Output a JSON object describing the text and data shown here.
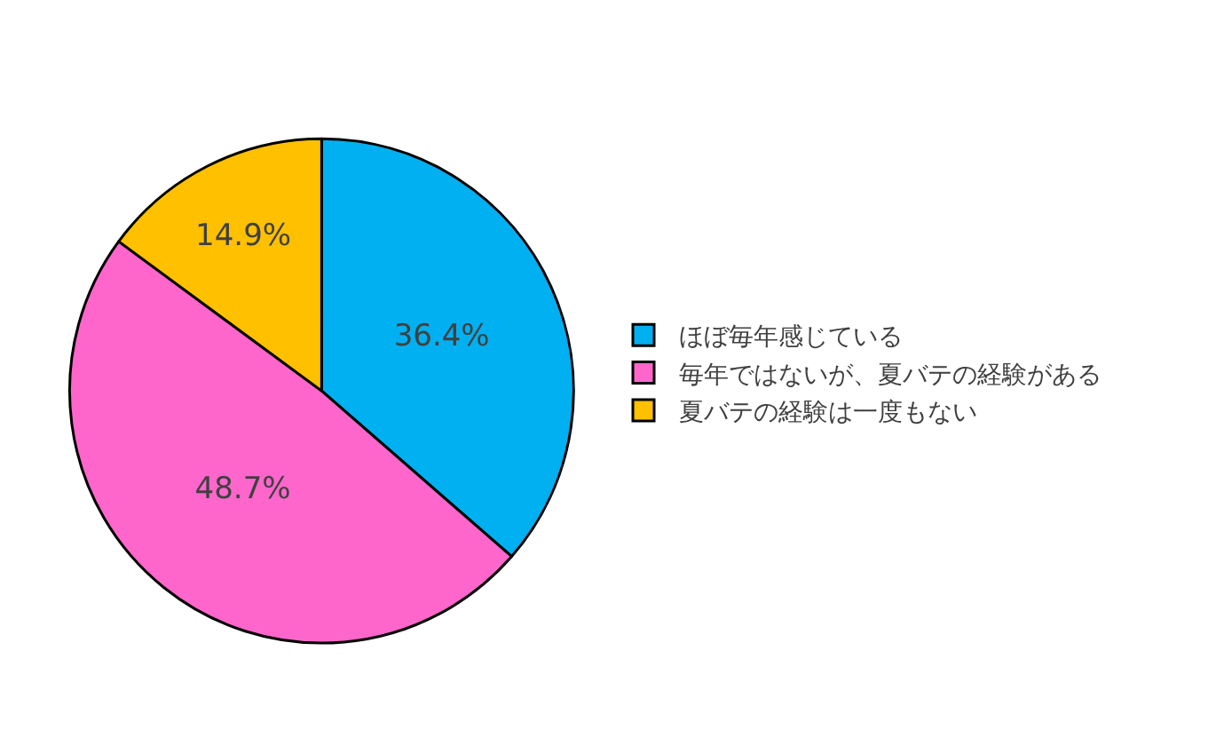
{
  "chart_data": {
    "type": "pie",
    "categories": [
      "ほぼ毎年感じている",
      "毎年ではないが、夏バテの経験がある",
      "夏バテの経験は一度もない"
    ],
    "values": [
      36.4,
      48.7,
      14.9
    ],
    "value_labels": [
      "36.4%",
      "48.7%",
      "14.9%"
    ],
    "colors": [
      "#00b0f0",
      "#ff66cc",
      "#ffc000"
    ],
    "legend": "right"
  }
}
